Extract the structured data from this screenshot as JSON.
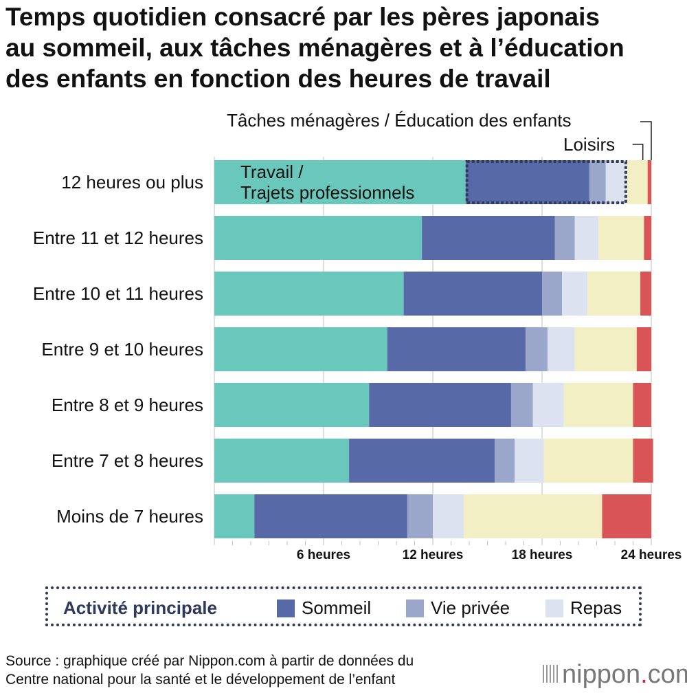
{
  "title": {
    "line1": "Temps quotidien consacré par les pères japonais",
    "line2": "au sommeil, aux tâches ménagères et à l’éducation",
    "line3": "des enfants en fonction des heures de travail"
  },
  "notes": {
    "menage": "Tâches ménagères / Éducation des enfants",
    "loisirs": "Loisirs",
    "travail_line1": "Travail /",
    "travail_line2": "Trajets professionnels"
  },
  "legend": {
    "main_label": "Activité principale",
    "sommeil": "Sommeil",
    "vie_privee": "Vie privée",
    "repas": "Repas"
  },
  "source": {
    "line1": "Source : graphique créé par Nippon.com à partir de données du",
    "line2": "Centre national pour la santé et le développement de l’enfant"
  },
  "logo": {
    "text_main": "nippon",
    "dot": ".",
    "text_end": "com"
  },
  "colors": {
    "travail": "#6ac7bb",
    "sommeil": "#5869a7",
    "vie_privee": "#9aa6ca",
    "repas": "#dde2f0",
    "loisirs": "#f2efc4",
    "menage": "#d95457",
    "accent_logo_dot": "#d6253a"
  },
  "chart_data": {
    "type": "bar",
    "orientation": "horizontal",
    "stacked": true,
    "categories": [
      "12 heures ou plus",
      "Entre 11 et 12 heures",
      "Entre 10 et 11 heures",
      "Entre 9 et 10 heures",
      "Entre 8 et 9 heures",
      "Entre 7 et 8 heures",
      "Moins de 7 heures"
    ],
    "series": [
      {
        "name": "Travail / Trajets professionnels",
        "values": [
          13.8,
          11.4,
          10.4,
          9.5,
          8.5,
          7.4,
          2.2
        ]
      },
      {
        "name": "Sommeil",
        "values": [
          6.8,
          7.3,
          7.6,
          7.6,
          7.8,
          8.0,
          8.4
        ]
      },
      {
        "name": "Vie privée",
        "values": [
          0.9,
          1.1,
          1.1,
          1.2,
          1.2,
          1.1,
          1.4
        ]
      },
      {
        "name": "Repas",
        "values": [
          1.1,
          1.3,
          1.4,
          1.5,
          1.7,
          1.6,
          1.7
        ]
      },
      {
        "name": "Loisirs",
        "values": [
          1.2,
          2.5,
          2.9,
          3.4,
          3.8,
          4.9,
          7.6
        ]
      },
      {
        "name": "Tâches ménagères / Éducation des enfants",
        "values": [
          0.2,
          0.4,
          0.6,
          0.8,
          1.0,
          1.1,
          2.7
        ]
      }
    ],
    "x_ticks": [
      6,
      12,
      18,
      24
    ],
    "x_tick_labels": [
      "6 heures",
      "12 heures",
      "18 heures",
      "24 heures"
    ],
    "xlim": [
      0,
      24
    ],
    "grid": true,
    "legend_position": "bottom"
  }
}
